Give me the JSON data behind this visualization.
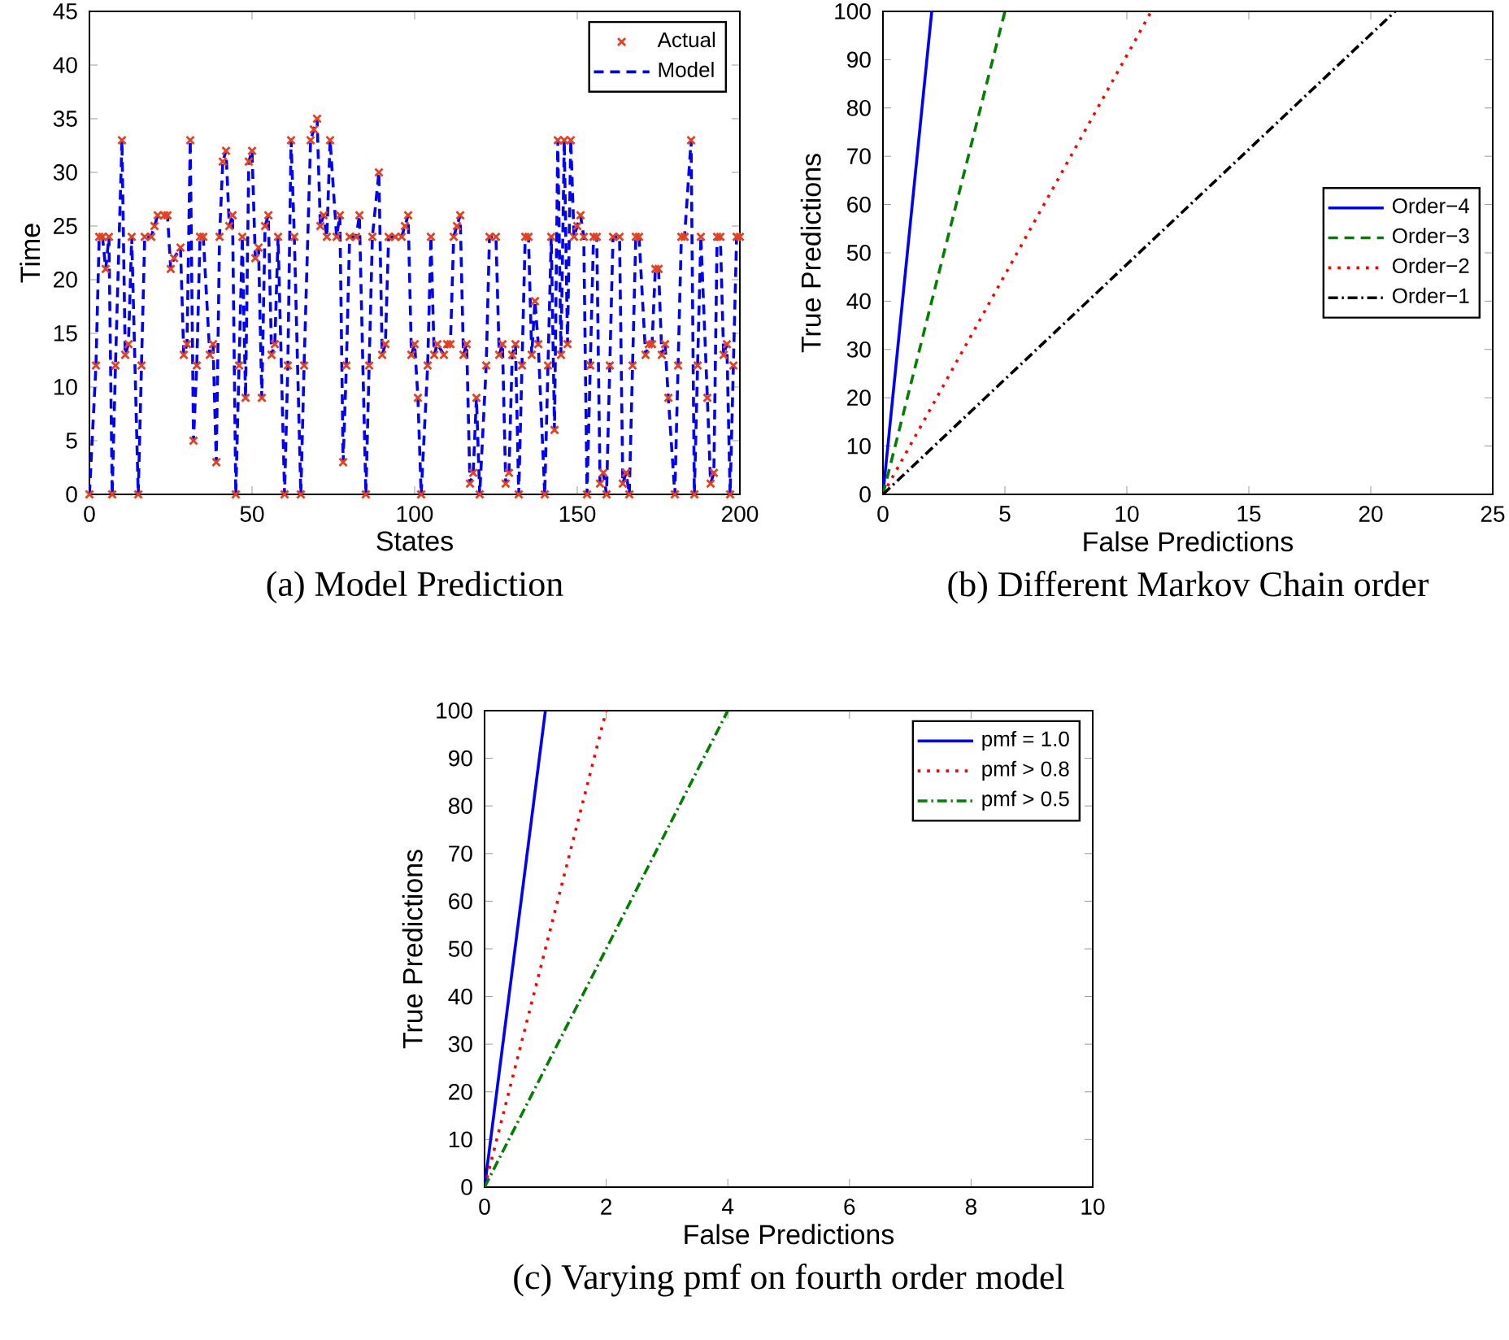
{
  "chart_data": [
    {
      "type": "line",
      "title": "(a) Model Prediction",
      "xlabel": "States",
      "ylabel": "Time",
      "xlim": [
        0,
        200
      ],
      "xticks": [
        0,
        50,
        100,
        150,
        200
      ],
      "ylim": [
        0,
        45
      ],
      "yticks": [
        0,
        5,
        10,
        15,
        20,
        25,
        30,
        35,
        40,
        45
      ],
      "legend": "top right",
      "x": [
        0,
        2,
        3,
        4,
        5,
        6,
        7,
        8,
        10,
        11,
        12,
        13,
        15,
        16,
        17,
        19,
        20,
        21,
        23,
        24,
        25,
        26,
        28,
        29,
        30,
        31,
        32,
        33,
        34,
        35,
        37,
        38,
        39,
        40,
        41,
        42,
        43,
        44,
        45,
        46,
        47,
        48,
        49,
        50,
        51,
        52,
        53,
        54,
        55,
        56,
        57,
        58,
        60,
        61,
        62,
        63,
        65,
        66,
        68,
        69,
        70,
        71,
        72,
        73,
        74,
        76,
        77,
        78,
        79,
        80,
        82,
        83,
        85,
        86,
        87,
        89,
        90,
        91,
        92,
        94,
        96,
        97,
        98,
        99,
        100,
        101,
        102,
        104,
        105,
        106,
        107,
        109,
        110,
        111,
        112,
        113,
        114,
        115,
        116,
        117,
        118,
        119,
        120,
        122,
        123,
        125,
        126,
        127,
        128,
        129,
        130,
        131,
        132,
        133,
        134,
        135,
        136,
        137,
        138,
        140,
        141,
        142,
        143,
        144,
        145,
        146,
        147,
        148,
        149,
        150,
        151,
        152,
        153,
        154,
        155,
        156,
        157,
        158,
        159,
        160,
        161,
        163,
        164,
        165,
        166,
        167,
        168,
        169,
        171,
        172,
        173,
        174,
        175,
        176,
        177,
        178,
        180,
        181,
        182,
        183,
        185,
        186,
        187,
        188,
        190,
        191,
        192,
        193,
        194,
        195,
        196,
        197,
        198,
        199,
        200
      ],
      "series": [
        {
          "name": "Actual",
          "type": "scatter",
          "marker": "cross",
          "color": "#e8401c",
          "values": [
            0,
            12,
            24,
            24,
            21,
            24,
            0,
            12,
            33,
            13,
            14,
            24,
            0,
            12,
            24,
            24,
            25,
            26,
            26,
            26,
            21,
            22,
            23,
            13,
            14,
            33,
            5,
            12,
            24,
            24,
            13,
            14,
            3,
            24,
            31,
            32,
            25,
            26,
            0,
            12,
            24,
            9,
            31,
            32,
            22,
            23,
            9,
            25,
            26,
            13,
            14,
            24,
            0,
            12,
            33,
            24,
            0,
            12,
            33,
            34,
            35,
            25,
            26,
            24,
            33,
            24,
            26,
            3,
            12,
            24,
            24,
            26,
            0,
            12,
            24,
            30,
            13,
            14,
            24,
            24,
            24,
            25,
            26,
            13,
            14,
            9,
            0,
            12,
            24,
            13,
            14,
            13,
            14,
            14,
            24,
            25,
            26,
            13,
            14,
            1,
            2,
            9,
            0,
            12,
            24,
            24,
            13,
            14,
            1,
            2,
            13,
            14,
            0,
            12,
            24,
            24,
            13,
            18,
            14,
            0,
            12,
            24,
            6,
            33,
            13,
            33,
            14,
            33,
            24,
            25,
            26,
            24,
            0,
            12,
            24,
            24,
            1,
            2,
            0,
            12,
            24,
            24,
            1,
            2,
            0,
            12,
            24,
            24,
            13,
            14,
            14,
            21,
            21,
            13,
            14,
            9,
            0,
            12,
            24,
            24,
            33,
            0,
            12,
            24,
            9,
            1,
            2,
            24,
            24,
            13,
            14,
            0,
            12,
            24,
            24
          ]
        },
        {
          "name": "Model",
          "type": "line",
          "line_style": "dashed",
          "color": "#0000ff",
          "values": [
            0,
            12,
            24,
            24,
            21,
            24,
            0,
            12,
            33,
            13,
            14,
            24,
            0,
            12,
            24,
            24,
            25,
            26,
            26,
            26,
            21,
            22,
            23,
            13,
            14,
            33,
            5,
            12,
            24,
            24,
            13,
            14,
            3,
            24,
            31,
            32,
            25,
            26,
            0,
            12,
            24,
            9,
            31,
            32,
            22,
            23,
            9,
            25,
            26,
            13,
            14,
            24,
            0,
            12,
            33,
            24,
            0,
            12,
            33,
            34,
            35,
            25,
            26,
            24,
            33,
            24,
            26,
            3,
            12,
            24,
            24,
            26,
            0,
            12,
            24,
            30,
            13,
            14,
            24,
            24,
            24,
            25,
            26,
            13,
            14,
            9,
            0,
            12,
            24,
            13,
            14,
            13,
            14,
            14,
            24,
            25,
            26,
            13,
            14,
            1,
            2,
            9,
            0,
            12,
            24,
            24,
            13,
            14,
            1,
            2,
            13,
            14,
            0,
            12,
            24,
            24,
            13,
            18,
            14,
            0,
            12,
            24,
            6,
            33,
            13,
            33,
            14,
            33,
            24,
            25,
            26,
            24,
            0,
            12,
            24,
            24,
            1,
            2,
            0,
            12,
            24,
            24,
            1,
            2,
            0,
            12,
            24,
            24,
            13,
            14,
            14,
            21,
            21,
            13,
            14,
            9,
            0,
            12,
            24,
            24,
            33,
            0,
            12,
            24,
            9,
            1,
            2,
            24,
            24,
            13,
            14,
            0,
            12,
            24,
            24
          ]
        }
      ]
    },
    {
      "type": "line",
      "title": "(b) Different Markov Chain order",
      "xlabel": "False Predictions",
      "ylabel": "True Predictions",
      "xlim": [
        0,
        25
      ],
      "xticks": [
        0,
        5,
        10,
        15,
        20,
        25
      ],
      "ylim": [
        0,
        100
      ],
      "yticks": [
        0,
        10,
        20,
        30,
        40,
        50,
        60,
        70,
        80,
        90,
        100
      ],
      "legend": "right",
      "series": [
        {
          "name": "Order−4",
          "color": "#0000ff",
          "line_style": "solid",
          "x": [
            0,
            2
          ],
          "values": [
            0,
            100
          ]
        },
        {
          "name": "Order−3",
          "color": "#008000",
          "line_style": "dashed",
          "x": [
            0,
            5
          ],
          "values": [
            0,
            100
          ]
        },
        {
          "name": "Order−2",
          "color": "#ff0000",
          "line_style": "dotted",
          "x": [
            0,
            11
          ],
          "values": [
            0,
            100
          ]
        },
        {
          "name": "Order−1",
          "color": "#000000",
          "line_style": "dashdot",
          "x": [
            0,
            21
          ],
          "values": [
            0,
            100
          ]
        }
      ]
    },
    {
      "type": "line",
      "title": "(c) Varying pmf on fourth order model",
      "xlabel": "False Predictions",
      "ylabel": "True Predictions",
      "xlim": [
        0,
        10
      ],
      "xticks": [
        0,
        2,
        4,
        6,
        8,
        10
      ],
      "ylim": [
        0,
        100
      ],
      "yticks": [
        0,
        10,
        20,
        30,
        40,
        50,
        60,
        70,
        80,
        90,
        100
      ],
      "legend": "top right",
      "series": [
        {
          "name": "pmf = 1.0",
          "color": "#0000ff",
          "line_style": "solid",
          "x": [
            0,
            1
          ],
          "values": [
            0,
            100
          ]
        },
        {
          "name": "pmf > 0.8",
          "color": "#ff0000",
          "line_style": "dotted",
          "x": [
            0,
            2
          ],
          "values": [
            0,
            100
          ]
        },
        {
          "name": "pmf > 0.5",
          "color": "#008000",
          "line_style": "dashdot",
          "x": [
            0,
            4
          ],
          "values": [
            0,
            100
          ]
        }
      ]
    }
  ]
}
